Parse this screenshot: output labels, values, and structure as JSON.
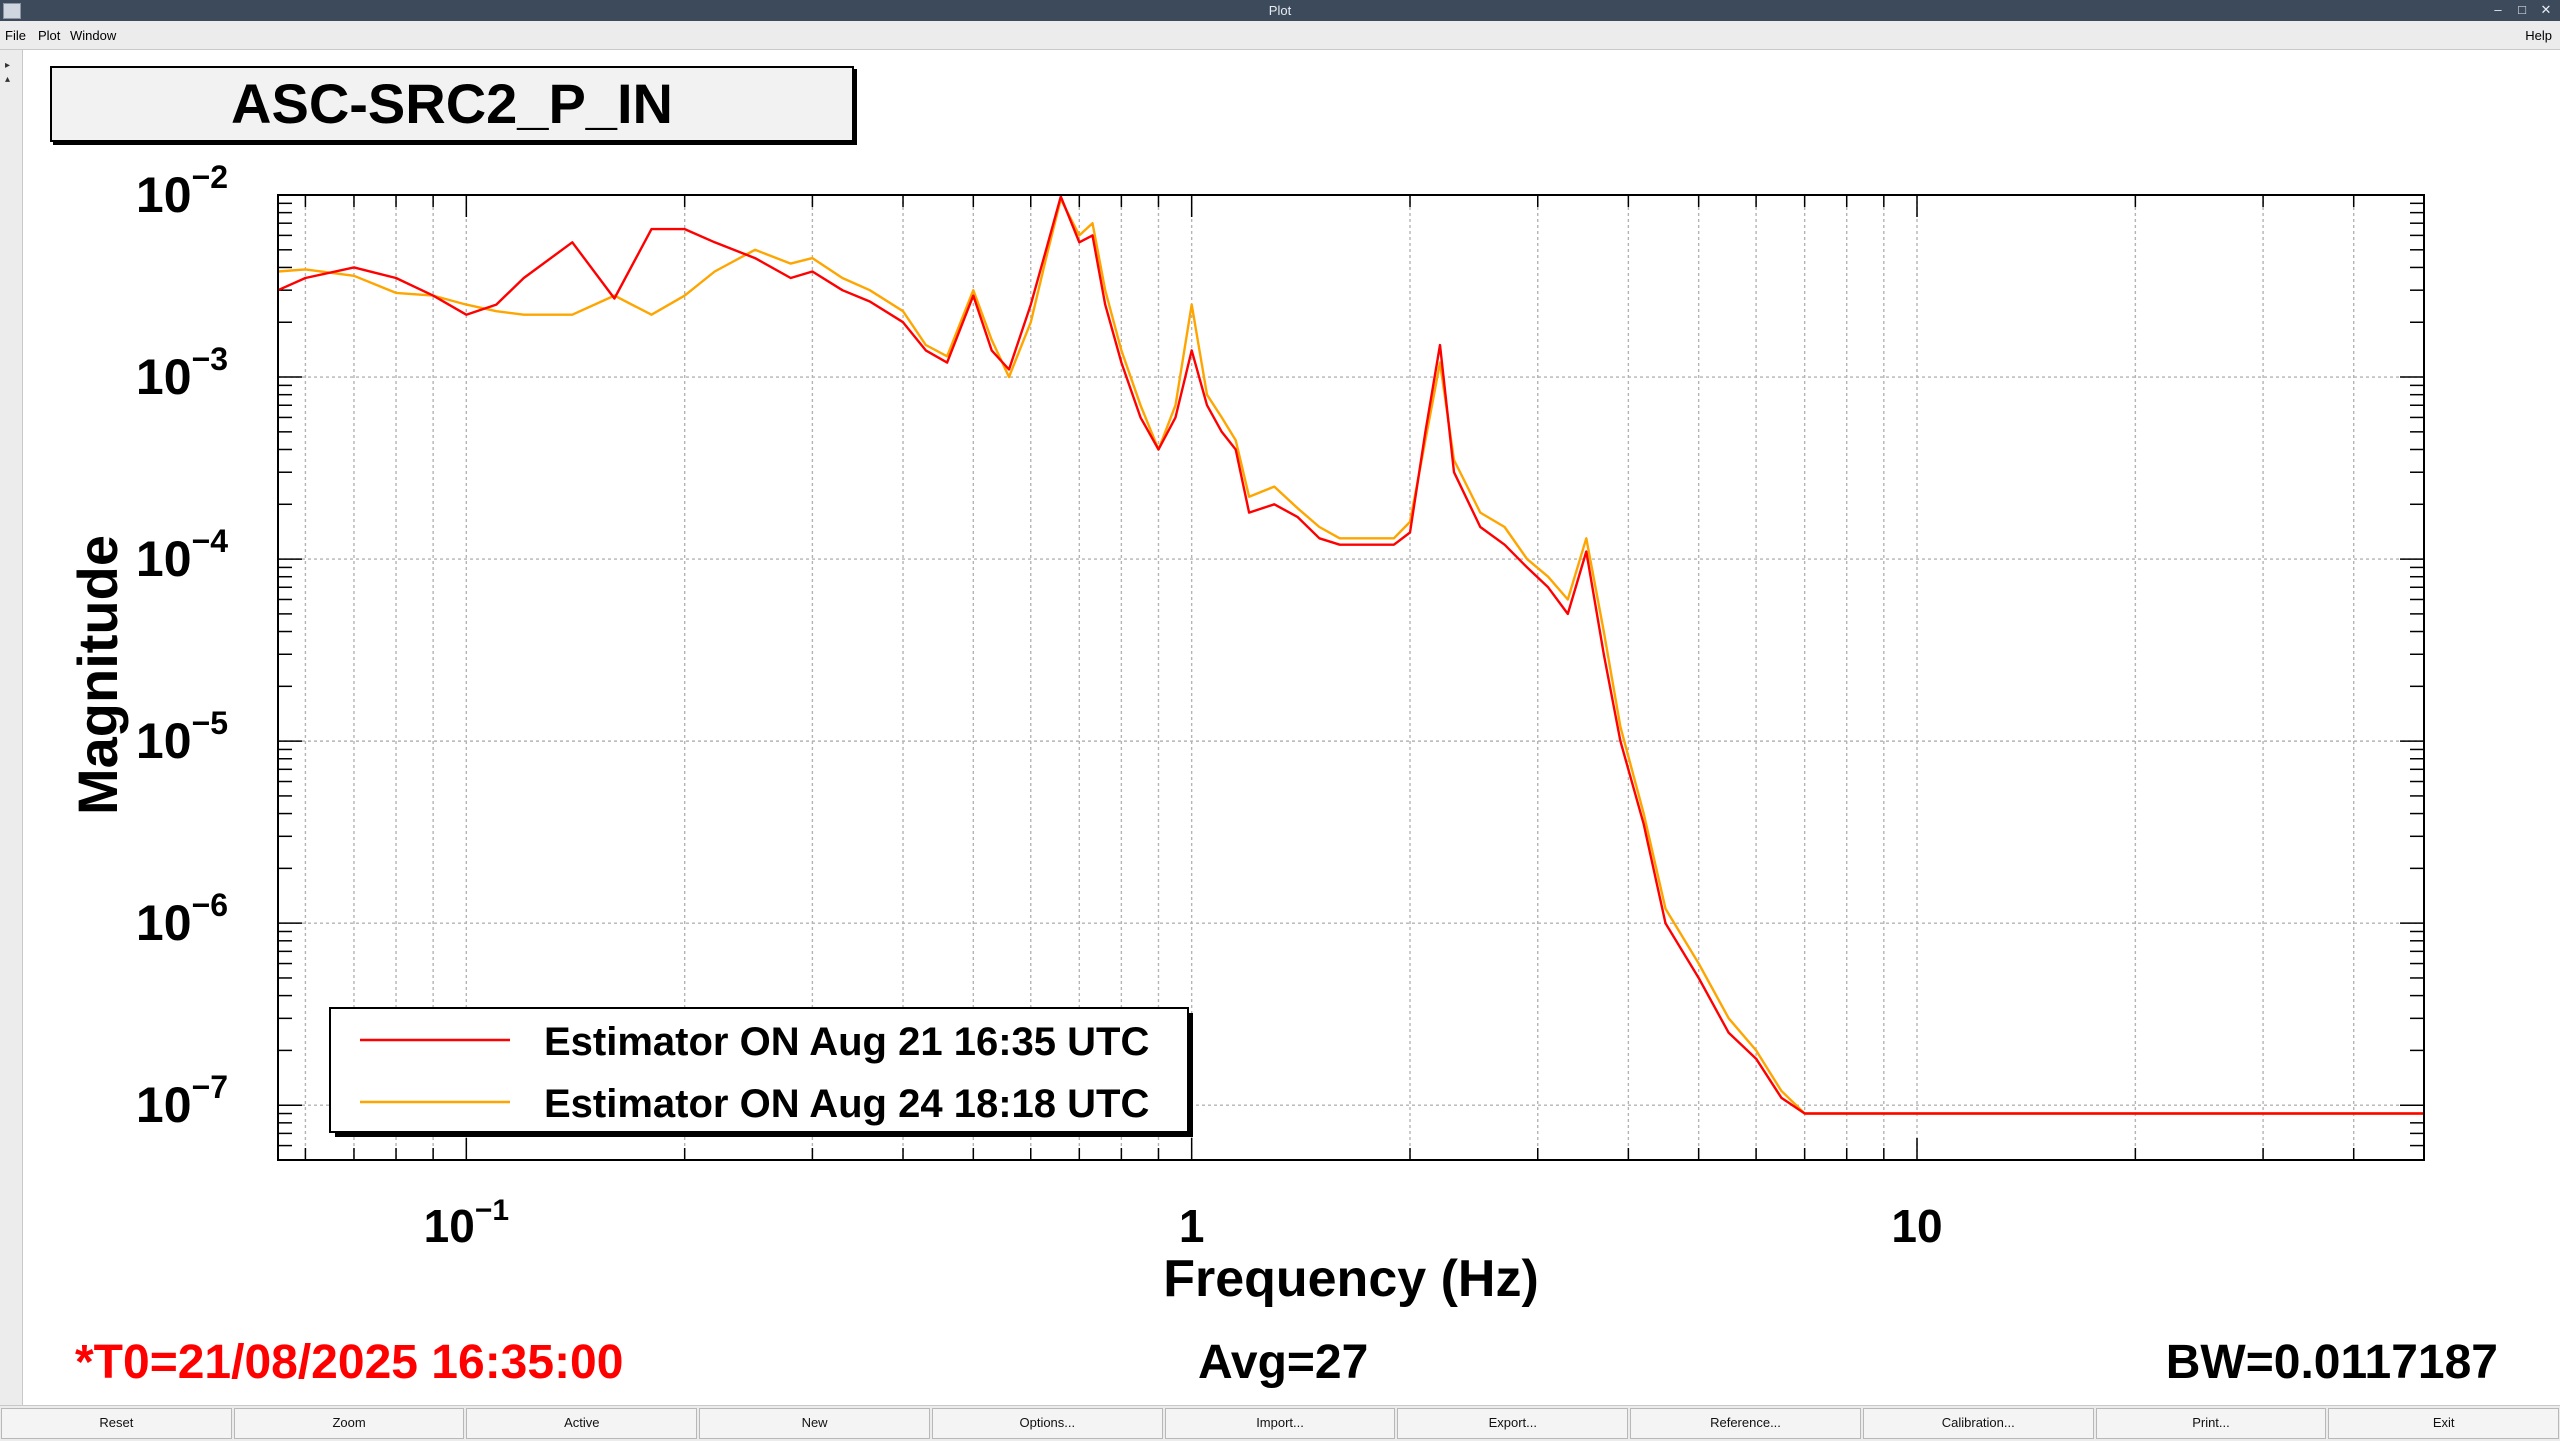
{
  "window": {
    "title": "Plot"
  },
  "menu": {
    "items": [
      "File",
      "Plot",
      "Window"
    ],
    "help": "Help"
  },
  "plot_title": "ASC-SRC2_P_IN",
  "status": {
    "t0": "*T0=21/08/2025 16:35:00",
    "avg": "Avg=27",
    "bw": "BW=0.0117187",
    "t0_color": "#ff0000"
  },
  "buttons": [
    "Reset",
    "Zoom",
    "Active",
    "New",
    "Options...",
    "Import...",
    "Export...",
    "Reference...",
    "Calibration...",
    "Print...",
    "Exit"
  ],
  "chart_data": {
    "type": "line",
    "xlabel": "Frequency (Hz)",
    "ylabel": "Magnitude",
    "x_scale": "log",
    "y_scale": "log",
    "xlim": [
      0.055,
      50
    ],
    "ylim": [
      5e-08,
      0.01
    ],
    "x_ticks": [
      {
        "value": 0.1,
        "base": "10",
        "exp": "−1"
      },
      {
        "value": 1,
        "base": "1",
        "exp": ""
      },
      {
        "value": 10,
        "base": "10",
        "exp": ""
      }
    ],
    "y_ticks": [
      {
        "value": 0.01,
        "base": "10",
        "exp": "−2"
      },
      {
        "value": 0.001,
        "base": "10",
        "exp": "−3"
      },
      {
        "value": 0.0001,
        "base": "10",
        "exp": "−4"
      },
      {
        "value": 1e-05,
        "base": "10",
        "exp": "−5"
      },
      {
        "value": 1e-06,
        "base": "10",
        "exp": "−6"
      },
      {
        "value": 1e-07,
        "base": "10",
        "exp": "−7"
      }
    ],
    "grid": true,
    "legend_position": "bottom-left",
    "series": [
      {
        "name": "Estimator ON Aug 24 18:18 UTC",
        "color": "#ffa500",
        "x": [
          0.055,
          0.06,
          0.07,
          0.08,
          0.09,
          0.1,
          0.11,
          0.12,
          0.14,
          0.16,
          0.18,
          0.2,
          0.22,
          0.25,
          0.28,
          0.3,
          0.33,
          0.36,
          0.4,
          0.43,
          0.46,
          0.5,
          0.53,
          0.56,
          0.6,
          0.63,
          0.66,
          0.7,
          0.73,
          0.76,
          0.8,
          0.85,
          0.9,
          0.95,
          1.0,
          1.05,
          1.1,
          1.15,
          1.2,
          1.3,
          1.4,
          1.5,
          1.6,
          1.7,
          1.8,
          1.9,
          2.0,
          2.1,
          2.2,
          2.3,
          2.5,
          2.7,
          2.9,
          3.1,
          3.3,
          3.5,
          3.7,
          3.9,
          4.2,
          4.5,
          5.0,
          5.5,
          6.0,
          6.5,
          7.0,
          7.5,
          8.0,
          9.0,
          10.0,
          12.0,
          15.0,
          20.0,
          25.0,
          30.0,
          40.0,
          50.0
        ],
        "values": [
          0.0038,
          0.0039,
          0.0036,
          0.0029,
          0.0028,
          0.0025,
          0.0023,
          0.0022,
          0.0022,
          0.0028,
          0.0022,
          0.0028,
          0.0038,
          0.005,
          0.0042,
          0.0045,
          0.0035,
          0.003,
          0.0023,
          0.0015,
          0.0013,
          0.003,
          0.0016,
          0.001,
          0.002,
          0.0045,
          0.0095,
          0.006,
          0.007,
          0.003,
          0.0014,
          0.0007,
          0.0004,
          0.0007,
          0.0025,
          0.0008,
          0.0006,
          0.00045,
          0.00022,
          0.00025,
          0.00019,
          0.00015,
          0.00013,
          0.00013,
          0.00013,
          0.00013,
          0.00016,
          0.00045,
          0.0012,
          0.00035,
          0.00018,
          0.00015,
          0.0001,
          8e-05,
          6e-05,
          0.00013,
          4e-05,
          1.2e-05,
          4e-06,
          1.2e-06,
          6e-07,
          3e-07,
          2e-07,
          1.2e-07,
          9e-08,
          9e-08,
          9e-08,
          9e-08,
          9e-08,
          9e-08,
          9e-08,
          9e-08,
          9e-08,
          9e-08,
          9e-08,
          9e-08
        ]
      },
      {
        "name": "Estimator ON Aug 21 16:35 UTC",
        "color": "#ff0000",
        "x": [
          0.055,
          0.06,
          0.07,
          0.08,
          0.09,
          0.1,
          0.11,
          0.12,
          0.14,
          0.16,
          0.18,
          0.2,
          0.22,
          0.25,
          0.28,
          0.3,
          0.33,
          0.36,
          0.4,
          0.43,
          0.46,
          0.5,
          0.53,
          0.56,
          0.6,
          0.63,
          0.66,
          0.7,
          0.73,
          0.76,
          0.8,
          0.85,
          0.9,
          0.95,
          1.0,
          1.05,
          1.1,
          1.15,
          1.2,
          1.3,
          1.4,
          1.5,
          1.6,
          1.7,
          1.8,
          1.9,
          2.0,
          2.1,
          2.2,
          2.3,
          2.5,
          2.7,
          2.9,
          3.1,
          3.3,
          3.5,
          3.7,
          3.9,
          4.2,
          4.5,
          5.0,
          5.5,
          6.0,
          6.5,
          7.0,
          7.5,
          8.0,
          9.0,
          10.0,
          12.0,
          15.0,
          20.0,
          25.0,
          30.0,
          40.0,
          50.0
        ],
        "values": [
          0.003,
          0.0035,
          0.004,
          0.0035,
          0.0028,
          0.0022,
          0.0025,
          0.0035,
          0.0055,
          0.0027,
          0.0065,
          0.0065,
          0.0055,
          0.0045,
          0.0035,
          0.0038,
          0.003,
          0.0026,
          0.002,
          0.0014,
          0.0012,
          0.0028,
          0.0014,
          0.0011,
          0.0025,
          0.005,
          0.0098,
          0.0055,
          0.006,
          0.0025,
          0.0012,
          0.0006,
          0.0004,
          0.0006,
          0.0014,
          0.0007,
          0.0005,
          0.0004,
          0.00018,
          0.0002,
          0.00017,
          0.00013,
          0.00012,
          0.00012,
          0.00012,
          0.00012,
          0.00014,
          0.0005,
          0.0015,
          0.0003,
          0.00015,
          0.00012,
          9e-05,
          7e-05,
          5e-05,
          0.00011,
          3e-05,
          1e-05,
          3.5e-06,
          1e-06,
          5e-07,
          2.5e-07,
          1.8e-07,
          1.1e-07,
          9e-08,
          9e-08,
          9e-08,
          9e-08,
          9e-08,
          9e-08,
          9e-08,
          9e-08,
          9e-08,
          9e-08,
          9e-08,
          9e-08
        ]
      }
    ],
    "legend": [
      {
        "label": "Estimator ON Aug 21 16:35 UTC",
        "color": "#ff0000"
      },
      {
        "label": "Estimator ON Aug 24 18:18 UTC",
        "color": "#ffa500"
      }
    ]
  }
}
